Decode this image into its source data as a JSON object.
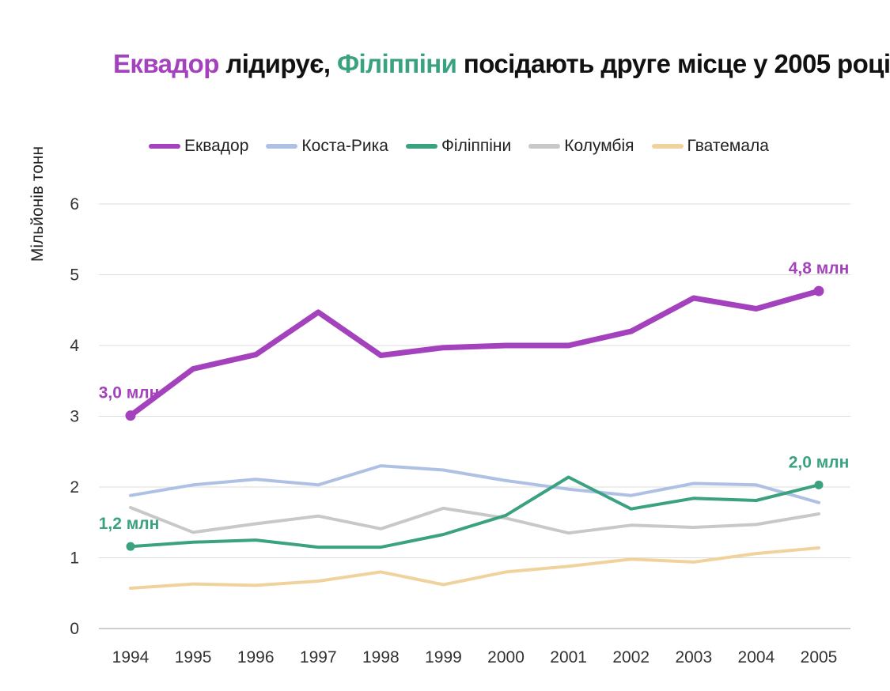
{
  "chart_data": {
    "type": "line",
    "title_parts": [
      {
        "text": "Еквадор",
        "color": "#a442be"
      },
      {
        "text": " лідирує, ",
        "color": "#111111"
      },
      {
        "text": "Філіппіни",
        "color": "#3aa181"
      },
      {
        "text": " посідають друге місце у 2005 році",
        "color": "#111111"
      }
    ],
    "xlabel": "",
    "ylabel": "Мільйонів тонн",
    "ylim": [
      0,
      6
    ],
    "yticks": [
      "0",
      "1",
      "2",
      "3",
      "4",
      "5",
      "6"
    ],
    "x": [
      "1994",
      "1995",
      "1996",
      "1997",
      "1998",
      "1999",
      "2000",
      "2001",
      "2002",
      "2003",
      "2004",
      "2005"
    ],
    "grid": "horizontal",
    "legend_position": "top",
    "series": [
      {
        "name": "Гватемала",
        "color": "#f0d39c",
        "width": 4,
        "values": [
          0.57,
          0.63,
          0.61,
          0.67,
          0.8,
          0.62,
          0.8,
          0.88,
          0.98,
          0.94,
          1.06,
          1.14
        ]
      },
      {
        "name": "Колумбія",
        "color": "#c8c8c8",
        "width": 4,
        "values": [
          1.71,
          1.36,
          1.48,
          1.59,
          1.41,
          1.7,
          1.56,
          1.35,
          1.46,
          1.43,
          1.47,
          1.62
        ]
      },
      {
        "name": "Коста-Рика",
        "color": "#aec1e4",
        "width": 4,
        "values": [
          1.88,
          2.03,
          2.11,
          2.03,
          2.3,
          2.24,
          2.09,
          1.97,
          1.88,
          2.05,
          2.03,
          1.78
        ]
      },
      {
        "name": "Філіппіни",
        "color": "#3aa181",
        "width": 4,
        "values": [
          1.16,
          1.22,
          1.25,
          1.15,
          1.15,
          1.33,
          1.6,
          2.14,
          1.69,
          1.84,
          1.81,
          2.03
        ]
      },
      {
        "name": "Еквадор",
        "color": "#a442be",
        "width": 7,
        "values": [
          3.01,
          3.67,
          3.87,
          4.47,
          3.86,
          3.97,
          4.0,
          4.0,
          4.2,
          4.67,
          4.52,
          4.77
        ]
      }
    ],
    "legend_order": [
      "Еквадор",
      "Коста-Рика",
      "Філіппіни",
      "Колумбія",
      "Гватемала"
    ],
    "annotations": [
      {
        "text": "3,0 млн",
        "series": "Еквадор",
        "x": "1994",
        "y": 3.01,
        "color": "#a442be"
      },
      {
        "text": "4,8 млн",
        "series": "Еквадор",
        "x": "2005",
        "y": 4.77,
        "color": "#a442be"
      },
      {
        "text": "1,2 млн",
        "series": "Філіппіни",
        "x": "1994",
        "y": 1.16,
        "color": "#3aa181"
      },
      {
        "text": "2,0 млн",
        "series": "Філіппіни",
        "x": "2005",
        "y": 2.03,
        "color": "#3aa181"
      }
    ]
  }
}
